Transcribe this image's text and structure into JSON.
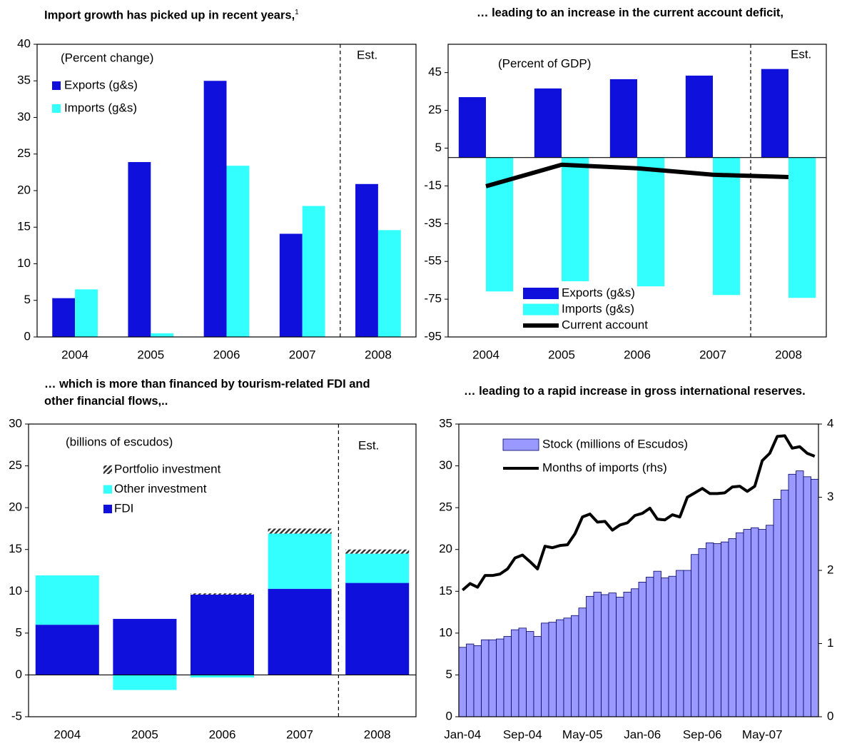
{
  "chart_data": [
    {
      "type": "bar",
      "title": "Import growth has picked up in recent years,",
      "title_note": "1",
      "annotations": [
        "(Percent change)",
        "Est."
      ],
      "categories": [
        "2004",
        "2005",
        "2006",
        "2007",
        "2008"
      ],
      "series": [
        {
          "name": "Exports (g&s)",
          "color": "#1010dc",
          "values": [
            5.3,
            23.9,
            35.0,
            14.1,
            20.9
          ]
        },
        {
          "name": "Imports (g&s)",
          "color": "#33ffff",
          "values": [
            6.5,
            0.5,
            23.4,
            17.9,
            14.6
          ]
        }
      ],
      "ylim": [
        0,
        40
      ],
      "yticks": [
        0,
        5,
        10,
        15,
        20,
        25,
        30,
        35,
        40
      ]
    },
    {
      "type": "bar",
      "title": "… leading to an increase in the current account deficit,",
      "annotations": [
        "(Percent of GDP)",
        "Est."
      ],
      "categories": [
        "2004",
        "2005",
        "2006",
        "2007",
        "2008"
      ],
      "series": [
        {
          "name": "Exports (g&s)",
          "color": "#1010dc",
          "values": [
            32.0,
            36.6,
            41.5,
            43.4,
            46.9
          ]
        },
        {
          "name": "Imports (g&s)",
          "color": "#33ffff",
          "values": [
            -70.9,
            -65.5,
            -68.2,
            -72.8,
            -74.3
          ]
        },
        {
          "name": "Current account",
          "type": "line",
          "color": "#000000",
          "values": [
            -15.2,
            -3.8,
            -5.7,
            -9.1,
            -10.3
          ]
        }
      ],
      "ylim": [
        -95,
        60
      ],
      "yticks": [
        -95,
        -75,
        -55,
        -35,
        -15,
        5,
        25,
        45
      ]
    },
    {
      "type": "stacked_bar",
      "title": "… which is more than financed by tourism-related FDI and other financial flows,..",
      "annotations": [
        "(billions of escudos)",
        "Est."
      ],
      "categories": [
        "2004",
        "2005",
        "2006",
        "2007",
        "2008"
      ],
      "series": [
        {
          "name": "FDI",
          "color": "#1010dc",
          "values": [
            6.0,
            6.7,
            9.6,
            10.3,
            11.0
          ]
        },
        {
          "name": "Other investment",
          "color": "#33ffff",
          "values": [
            5.9,
            -1.8,
            -0.3,
            6.6,
            3.5
          ]
        },
        {
          "name": "Portfolio investment",
          "color": "#333333",
          "hatch": true,
          "values": [
            0,
            0,
            0.15,
            0.6,
            0.5
          ]
        }
      ],
      "ylim": [
        -5,
        30
      ],
      "yticks": [
        -5,
        0,
        5,
        10,
        15,
        20,
        25,
        30
      ]
    },
    {
      "type": "bar",
      "title": "… leading to a rapid increase in gross international reserves.",
      "categories": [
        "Jan-04",
        null,
        null,
        null,
        null,
        null,
        null,
        null,
        "Sep-04",
        null,
        null,
        null,
        null,
        null,
        null,
        null,
        "May-05",
        null,
        null,
        null,
        null,
        null,
        null,
        null,
        "Jan-06",
        null,
        null,
        null,
        null,
        null,
        null,
        null,
        "Sep-06",
        null,
        null,
        null,
        null,
        null,
        null,
        null,
        "May-07",
        null,
        null,
        null,
        null,
        null,
        null,
        null
      ],
      "series": [
        {
          "name": "Stock (millions of Escudos)",
          "color": "#9999ff",
          "values": [
            8.3,
            8.7,
            8.5,
            9.2,
            9.2,
            9.3,
            9.6,
            10.4,
            10.6,
            10.2,
            9.6,
            11.2,
            11.3,
            11.6,
            11.8,
            12.1,
            13.0,
            14.4,
            14.9,
            14.6,
            14.8,
            14.3,
            14.9,
            15.3,
            16.1,
            16.7,
            17.4,
            16.6,
            16.8,
            17.5,
            17.5,
            19.4,
            20.1,
            20.8,
            20.7,
            20.9,
            21.3,
            22.0,
            22.4,
            22.6,
            22.4,
            22.9,
            26.0,
            27.1,
            29.0,
            29.4,
            28.7,
            28.4
          ]
        },
        {
          "name": "Months of imports  (rhs)",
          "type": "line",
          "axis": "y2",
          "color": "#000000",
          "values": [
            1.73,
            1.82,
            1.77,
            1.93,
            1.93,
            1.95,
            2.02,
            2.17,
            2.21,
            2.12,
            2.02,
            2.33,
            2.31,
            2.34,
            2.35,
            2.5,
            2.73,
            2.77,
            2.66,
            2.67,
            2.55,
            2.62,
            2.65,
            2.75,
            2.78,
            2.85,
            2.7,
            2.69,
            2.76,
            2.73,
            3.0,
            3.06,
            3.12,
            3.05,
            3.05,
            3.06,
            3.14,
            3.15,
            3.08,
            3.15,
            3.5,
            3.6,
            3.83,
            3.84,
            3.67,
            3.69,
            3.6,
            3.56
          ]
        }
      ],
      "ylim": [
        0,
        35
      ],
      "yticks": [
        0,
        5,
        10,
        15,
        20,
        25,
        30,
        35
      ],
      "y2lim": [
        0,
        4
      ],
      "y2ticks": [
        0,
        1,
        2,
        3,
        4
      ]
    }
  ]
}
